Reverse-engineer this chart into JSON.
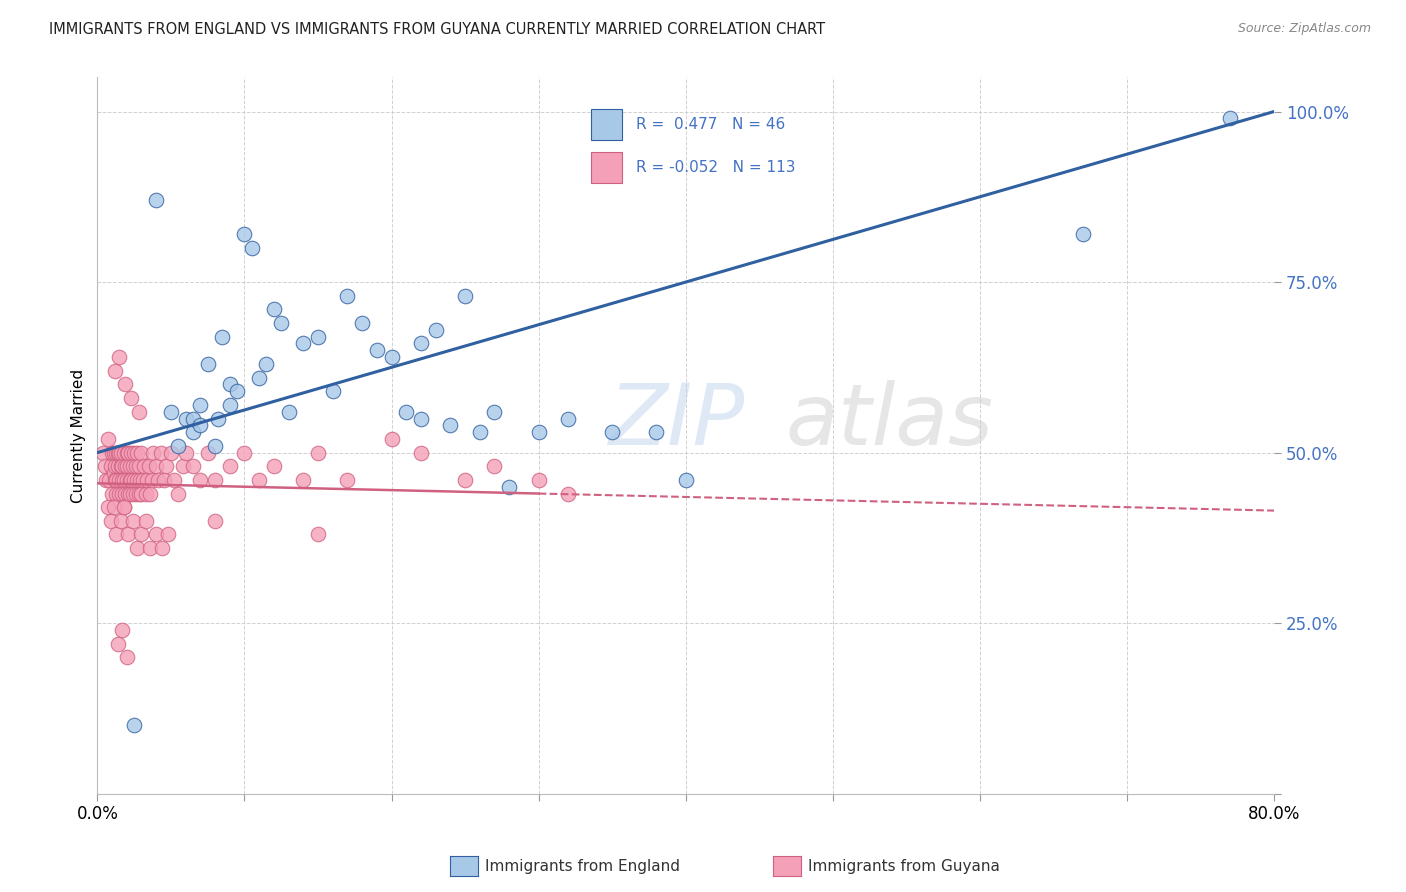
{
  "title": "IMMIGRANTS FROM ENGLAND VS IMMIGRANTS FROM GUYANA CURRENTLY MARRIED CORRELATION CHART",
  "source": "Source: ZipAtlas.com",
  "ylabel": "Currently Married",
  "x_min": 0.0,
  "x_max": 0.8,
  "y_min": 0.0,
  "y_max": 1.05,
  "y_ticks": [
    0.0,
    0.25,
    0.5,
    0.75,
    1.0
  ],
  "y_tick_labels": [
    "",
    "25.0%",
    "50.0%",
    "75.0%",
    "100.0%"
  ],
  "x_ticks": [
    0.0,
    0.1,
    0.2,
    0.3,
    0.4,
    0.5,
    0.6,
    0.7,
    0.8
  ],
  "x_tick_labels": [
    "0.0%",
    "",
    "",
    "",
    "",
    "",
    "",
    "",
    "80.0%"
  ],
  "color_england": "#a8c8e8",
  "color_guyana": "#f4a0b8",
  "color_england_line": "#3060a0",
  "color_guyana_line": "#d06080",
  "eng_line_x0": 0.0,
  "eng_line_y0": 0.5,
  "eng_line_x1": 0.8,
  "eng_line_y1": 1.0,
  "guy_line_solid_x0": 0.0,
  "guy_line_solid_y0": 0.455,
  "guy_line_solid_x1": 0.3,
  "guy_line_solid_y1": 0.44,
  "guy_line_dash_x0": 0.3,
  "guy_line_dash_y0": 0.44,
  "guy_line_dash_x1": 0.8,
  "guy_line_dash_y1": 0.415,
  "england_x": [
    0.025,
    0.04,
    0.05,
    0.055,
    0.06,
    0.065,
    0.065,
    0.07,
    0.07,
    0.075,
    0.08,
    0.082,
    0.085,
    0.09,
    0.09,
    0.095,
    0.1,
    0.105,
    0.11,
    0.115,
    0.12,
    0.125,
    0.13,
    0.14,
    0.15,
    0.16,
    0.17,
    0.18,
    0.19,
    0.2,
    0.21,
    0.22,
    0.23,
    0.24,
    0.25,
    0.26,
    0.27,
    0.28,
    0.3,
    0.32,
    0.35,
    0.38,
    0.4,
    0.22,
    0.67,
    0.77
  ],
  "england_y": [
    0.1,
    0.87,
    0.56,
    0.51,
    0.55,
    0.53,
    0.55,
    0.54,
    0.57,
    0.63,
    0.51,
    0.55,
    0.67,
    0.57,
    0.6,
    0.59,
    0.82,
    0.8,
    0.61,
    0.63,
    0.71,
    0.69,
    0.56,
    0.66,
    0.67,
    0.59,
    0.73,
    0.69,
    0.65,
    0.64,
    0.56,
    0.55,
    0.68,
    0.54,
    0.73,
    0.53,
    0.56,
    0.45,
    0.53,
    0.55,
    0.53,
    0.53,
    0.46,
    0.66,
    0.82,
    0.99
  ],
  "guyana_x": [
    0.004,
    0.005,
    0.006,
    0.007,
    0.008,
    0.009,
    0.01,
    0.01,
    0.011,
    0.011,
    0.012,
    0.012,
    0.013,
    0.013,
    0.013,
    0.014,
    0.014,
    0.015,
    0.015,
    0.015,
    0.016,
    0.016,
    0.017,
    0.017,
    0.017,
    0.018,
    0.018,
    0.018,
    0.019,
    0.019,
    0.02,
    0.02,
    0.02,
    0.021,
    0.021,
    0.022,
    0.022,
    0.022,
    0.023,
    0.023,
    0.024,
    0.024,
    0.025,
    0.025,
    0.026,
    0.026,
    0.027,
    0.027,
    0.028,
    0.028,
    0.029,
    0.03,
    0.03,
    0.031,
    0.032,
    0.033,
    0.034,
    0.035,
    0.036,
    0.037,
    0.038,
    0.04,
    0.041,
    0.043,
    0.045,
    0.047,
    0.05,
    0.052,
    0.055,
    0.058,
    0.06,
    0.065,
    0.07,
    0.075,
    0.08,
    0.09,
    0.1,
    0.11,
    0.12,
    0.14,
    0.15,
    0.17,
    0.2,
    0.22,
    0.25,
    0.27,
    0.3,
    0.32,
    0.15,
    0.08,
    0.007,
    0.009,
    0.011,
    0.013,
    0.016,
    0.018,
    0.021,
    0.024,
    0.027,
    0.03,
    0.033,
    0.036,
    0.04,
    0.044,
    0.048,
    0.012,
    0.015,
    0.019,
    0.023,
    0.028,
    0.014,
    0.017,
    0.02
  ],
  "guyana_y": [
    0.5,
    0.48,
    0.46,
    0.52,
    0.46,
    0.48,
    0.5,
    0.44,
    0.47,
    0.5,
    0.46,
    0.48,
    0.5,
    0.46,
    0.44,
    0.48,
    0.5,
    0.46,
    0.5,
    0.44,
    0.48,
    0.5,
    0.46,
    0.48,
    0.44,
    0.5,
    0.46,
    0.42,
    0.48,
    0.44,
    0.5,
    0.46,
    0.48,
    0.44,
    0.5,
    0.46,
    0.48,
    0.44,
    0.5,
    0.46,
    0.44,
    0.48,
    0.5,
    0.46,
    0.44,
    0.48,
    0.5,
    0.46,
    0.44,
    0.48,
    0.46,
    0.5,
    0.44,
    0.46,
    0.48,
    0.44,
    0.46,
    0.48,
    0.44,
    0.46,
    0.5,
    0.48,
    0.46,
    0.5,
    0.46,
    0.48,
    0.5,
    0.46,
    0.44,
    0.48,
    0.5,
    0.48,
    0.46,
    0.5,
    0.46,
    0.48,
    0.5,
    0.46,
    0.48,
    0.46,
    0.5,
    0.46,
    0.52,
    0.5,
    0.46,
    0.48,
    0.46,
    0.44,
    0.38,
    0.4,
    0.42,
    0.4,
    0.42,
    0.38,
    0.4,
    0.42,
    0.38,
    0.4,
    0.36,
    0.38,
    0.4,
    0.36,
    0.38,
    0.36,
    0.38,
    0.62,
    0.64,
    0.6,
    0.58,
    0.56,
    0.22,
    0.24,
    0.2
  ]
}
